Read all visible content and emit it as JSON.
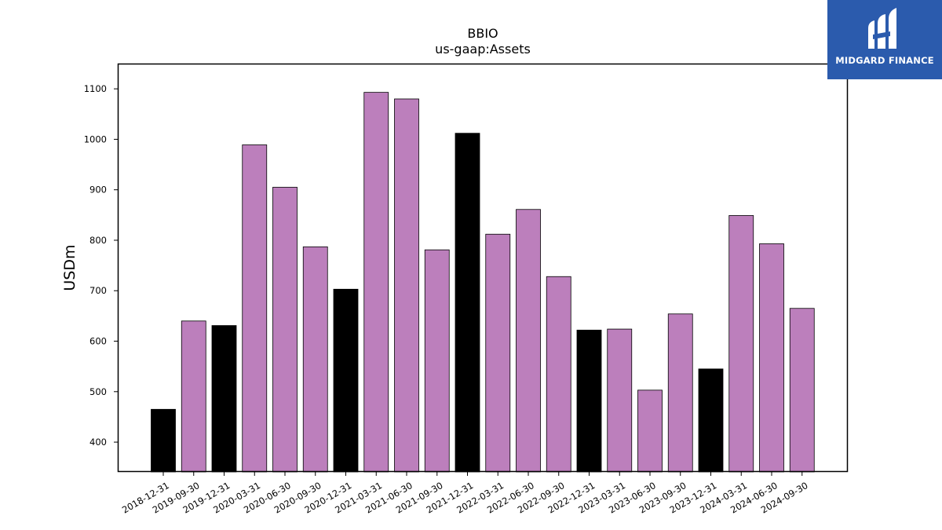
{
  "chart_data": {
    "type": "bar",
    "title": "BBIO",
    "subtitle": "us-gaap:Assets",
    "xlabel": "",
    "ylabel": "USDm",
    "ylim": [
      341,
      1150
    ],
    "yticks": [
      400,
      500,
      600,
      700,
      800,
      900,
      1000,
      1100
    ],
    "categories": [
      "2018-12-31",
      "2019-09-30",
      "2019-12-31",
      "2020-03-31",
      "2020-06-30",
      "2020-09-30",
      "2020-12-31",
      "2021-03-31",
      "2021-06-30",
      "2021-09-30",
      "2021-12-31",
      "2022-03-31",
      "2022-06-30",
      "2022-09-30",
      "2022-12-31",
      "2023-03-31",
      "2023-06-30",
      "2023-09-30",
      "2023-12-31",
      "2024-03-31",
      "2024-06-30",
      "2024-09-30"
    ],
    "values": [
      465,
      640,
      631,
      989,
      905,
      787,
      703,
      1093,
      1080,
      781,
      1012,
      812,
      861,
      728,
      622,
      624,
      503,
      654,
      545,
      849,
      793,
      665
    ],
    "bar_colors": [
      "#000000",
      "#bc7fbc",
      "#000000",
      "#bc7fbc",
      "#bc7fbc",
      "#bc7fbc",
      "#000000",
      "#bc7fbc",
      "#bc7fbc",
      "#bc7fbc",
      "#000000",
      "#bc7fbc",
      "#bc7fbc",
      "#bc7fbc",
      "#000000",
      "#bc7fbc",
      "#bc7fbc",
      "#bc7fbc",
      "#000000",
      "#bc7fbc",
      "#bc7fbc",
      "#bc7fbc"
    ],
    "grid": false,
    "legend": "none"
  },
  "logo": {
    "text": "MIDGARD FINANCE",
    "background": "#2b5bad",
    "icon": "midgard-logo-icon"
  }
}
